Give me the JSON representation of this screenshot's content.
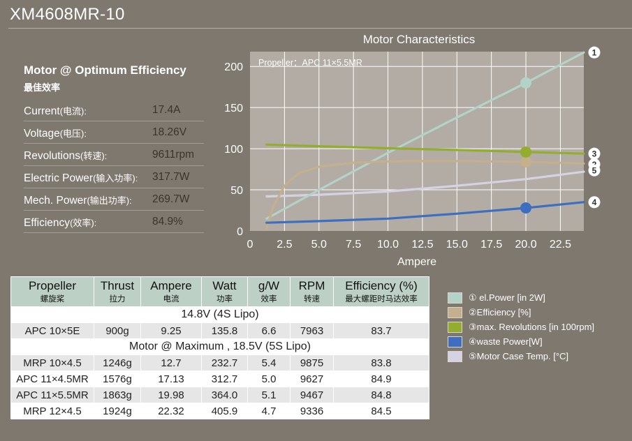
{
  "header": {
    "title": "XM4608MR-10"
  },
  "spec": {
    "heading": "Motor @ Optimum Efficiency",
    "heading_cn": "最佳效率",
    "rows": [
      {
        "label": "Current",
        "label_cn": "(电流):",
        "value": "17.4A"
      },
      {
        "label": "Voltage",
        "label_cn": "(电压):",
        "value": "18.26V"
      },
      {
        "label": "Revolutions",
        "label_cn": "(转速):",
        "value": "9611rpm"
      },
      {
        "label": "Electric Power",
        "label_cn": "(输入功率):",
        "value": "317.7W"
      },
      {
        "label": "Mech. Power",
        "label_cn": "(输出功率):",
        "value": "269.7W"
      },
      {
        "label": "Efficiency",
        "label_cn": "(效率):",
        "value": "84.9%"
      }
    ]
  },
  "chart_data": {
    "type": "line",
    "title": "Motor Characteristics",
    "annotation": "Propeller：APC 11×5.5MR",
    "xlabel": "Ampere",
    "ylabel": "",
    "xlim": [
      0,
      24.2
    ],
    "ylim": [
      0,
      218
    ],
    "x_ticks": [
      "0",
      "2.5",
      "5.0",
      "7.5",
      "10.0",
      "12.5",
      "15.0",
      "17.5",
      "20.0",
      "22.5"
    ],
    "x_tick_values": [
      0,
      2.5,
      5.0,
      7.5,
      10.0,
      12.5,
      15.0,
      17.5,
      20.0,
      22.5
    ],
    "y_ticks": [
      "0",
      "50",
      "100",
      "150",
      "200"
    ],
    "y_tick_values": [
      0,
      50,
      100,
      150,
      200
    ],
    "grid": true,
    "marker_x": 20.0,
    "series": [
      {
        "id": "1",
        "name": "el.Power [in 2W]",
        "color": "#b3d2c8",
        "x": [
          1.2,
          5,
          10,
          15,
          20,
          24.2
        ],
        "y": [
          15,
          50,
          95,
          138,
          180,
          217
        ],
        "marker_y": 180
      },
      {
        "id": "2",
        "name": "Efficiency [%]",
        "color": "#c4b08c",
        "x": [
          1.2,
          1.7,
          2.5,
          3.5,
          5,
          7.5,
          10,
          12.5,
          15,
          20,
          24.2
        ],
        "y": [
          3,
          30,
          55,
          70,
          78,
          83,
          84.5,
          85,
          85,
          84,
          82
        ],
        "marker_y": 84
      },
      {
        "id": "3",
        "name": "max. Revolutions [in 100rpm]",
        "color": "#93ad2f",
        "x": [
          1.2,
          5,
          10,
          15,
          20,
          24.2
        ],
        "y": [
          105,
          103,
          100.5,
          98.5,
          96,
          94
        ],
        "marker_y": 96
      },
      {
        "id": "4",
        "name": "waste Power[W]",
        "color": "#3e6ebf",
        "x": [
          1.2,
          5,
          10,
          15,
          20,
          24.2
        ],
        "y": [
          10,
          12,
          15,
          21,
          28,
          35
        ],
        "marker_y": 28
      },
      {
        "id": "5",
        "name": "Motor Case Temp. [°C]",
        "color": "#d5d2e4",
        "x": [
          1.2,
          5,
          10,
          15,
          20,
          24.2
        ],
        "y": [
          42,
          44,
          48,
          55,
          63,
          72
        ],
        "marker_y": null
      }
    ]
  },
  "legend": {
    "items": [
      {
        "label": "① el.Power [in 2W]",
        "color": "#b3d2c8"
      },
      {
        "label": "②Efficiency [%]",
        "color": "#c4b08c"
      },
      {
        "label": "③max. Revolutions [in 100rpm]",
        "color": "#93ad2f"
      },
      {
        "label": "④waste Power[W]",
        "color": "#3e6ebf"
      },
      {
        "label": "⑤Motor Case Temp. [°C]",
        "color": "#d5d2e4"
      }
    ]
  },
  "table": {
    "columns": [
      {
        "en": "Propeller",
        "cn": "螺旋桨"
      },
      {
        "en": "Thrust",
        "cn": "拉力"
      },
      {
        "en": "Ampere",
        "cn": "电流"
      },
      {
        "en": "Watt",
        "cn": "功率"
      },
      {
        "en": "g/W",
        "cn": "效率"
      },
      {
        "en": "RPM",
        "cn": "转速"
      },
      {
        "en": "Efficiency (%)",
        "cn": "最大螺距时马达效率"
      }
    ],
    "sections": [
      {
        "title": "14.8V (4S Lipo)",
        "rows": [
          [
            "APC 10×5E",
            "900g",
            "9.25",
            "135.8",
            "6.6",
            "7963",
            "83.7"
          ]
        ]
      },
      {
        "title": "Motor @ Maximum , 18.5V (5S Lipo)",
        "rows": [
          [
            "MRP 10×4.5",
            "1246g",
            "12.7",
            "232.7",
            "5.4",
            "9875",
            "83.8"
          ],
          [
            "APC 11×4.5MR",
            "1576g",
            "17.13",
            "312.7",
            "5.0",
            "9627",
            "84.9"
          ],
          [
            "APC 11×5.5MR",
            "1863g",
            "19.98",
            "364.0",
            "5.1",
            "9467",
            "84.8"
          ],
          [
            "MRP 12×4.5",
            "1924g",
            "22.32",
            "405.9",
            "4.7",
            "9336",
            "84.5"
          ]
        ]
      }
    ]
  }
}
